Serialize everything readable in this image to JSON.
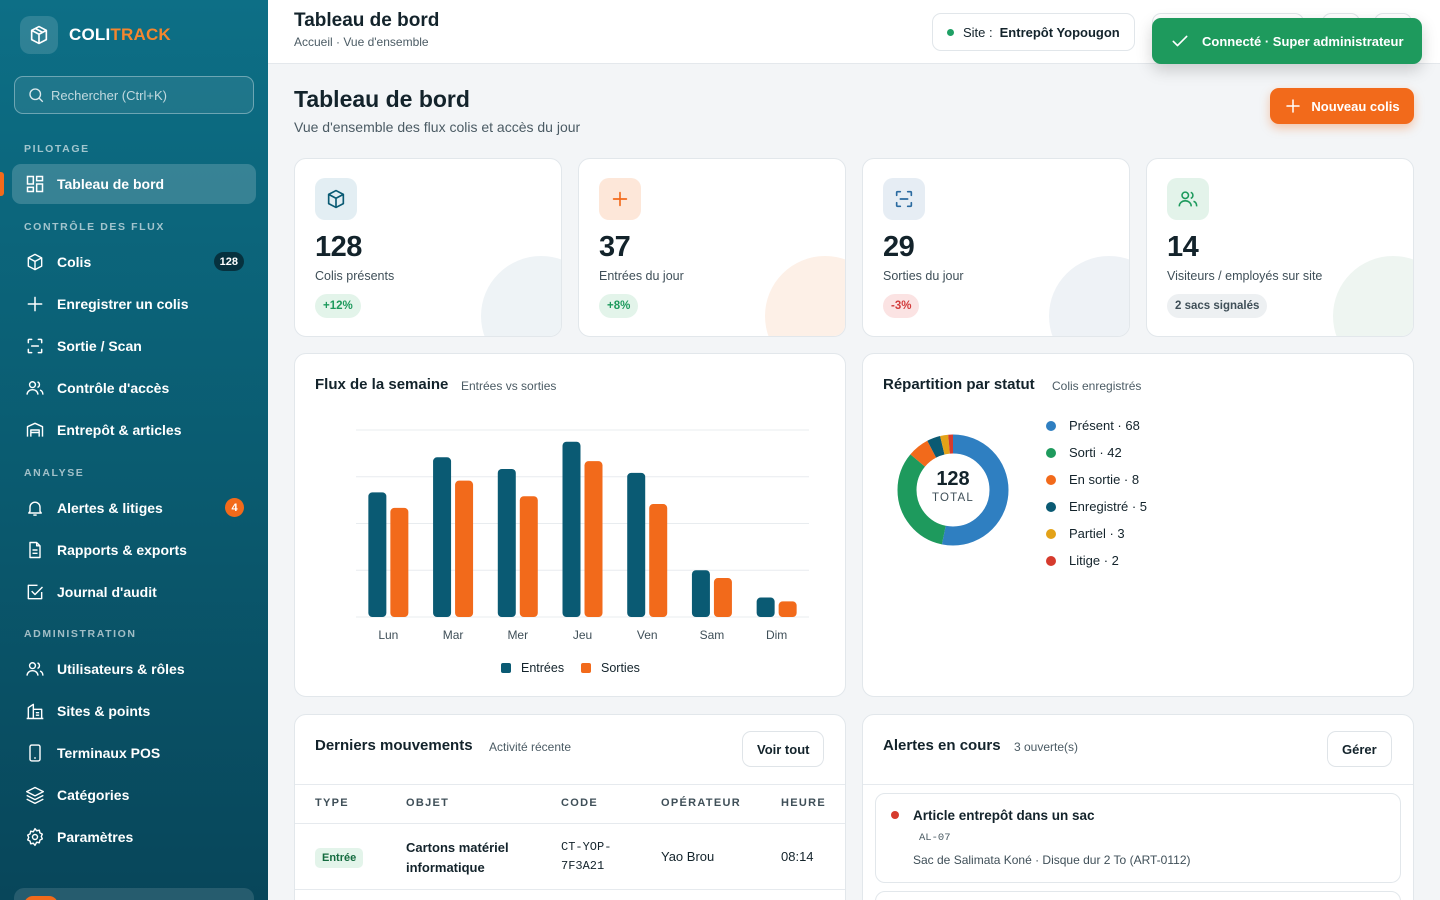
{
  "brand": {
    "name_part1": "COLI",
    "name_part2": "TRACK",
    "accent": "#f26a1b"
  },
  "search": {
    "placeholder": "Rechercher (Ctrl+K)"
  },
  "sidebar": {
    "sections": [
      "PILOTAGE",
      "CONTRÔLE DES FLUX",
      "ANALYSE",
      "ADMINISTRATION"
    ],
    "items": [
      {
        "label": "Tableau de bord",
        "icon": "dashboard-icon",
        "active": true
      },
      {
        "label": "Colis",
        "icon": "package-icon",
        "badge": "128"
      },
      {
        "label": "Enregistrer un colis",
        "icon": "plus-icon"
      },
      {
        "label": "Sortie / Scan",
        "icon": "scan-icon"
      },
      {
        "label": "Contrôle d'accès",
        "icon": "users-icon"
      },
      {
        "label": "Entrepôt & articles",
        "icon": "warehouse-icon"
      },
      {
        "label": "Alertes & litiges",
        "icon": "bell-icon",
        "badge": "4"
      },
      {
        "label": "Rapports & exports",
        "icon": "document-icon"
      },
      {
        "label": "Journal d'audit",
        "icon": "checkbox-icon"
      },
      {
        "label": "Utilisateurs & rôles",
        "icon": "users-icon"
      },
      {
        "label": "Sites & points",
        "icon": "building-icon"
      },
      {
        "label": "Terminaux POS",
        "icon": "device-icon"
      },
      {
        "label": "Catégories",
        "icon": "layers-icon"
      },
      {
        "label": "Paramètres",
        "icon": "gear-icon"
      }
    ]
  },
  "topbar": {
    "title": "Tableau de bord",
    "breadcrumb": "Accueil · Vue d'ensemble",
    "site_label": "Site :",
    "site_value": "Entrepôt Yopougon"
  },
  "toast": {
    "text": "Connecté · Super administrateur"
  },
  "page": {
    "title": "Tableau de bord",
    "subtitle": "Vue d'ensemble des flux colis et accès du jour",
    "new_button": "Nouveau colis"
  },
  "kpis": [
    {
      "value": "128",
      "label": "Colis présents",
      "badge": "+12%",
      "icon": "package-icon"
    },
    {
      "value": "37",
      "label": "Entrées du jour",
      "badge": "+8%",
      "icon": "plus-icon"
    },
    {
      "value": "29",
      "label": "Sorties du jour",
      "badge": "-3%",
      "icon": "scan-icon"
    },
    {
      "value": "14",
      "label": "Visiteurs / employés sur site",
      "badge": "2 sacs signalés",
      "icon": "users-icon"
    }
  ],
  "flux_chart": {
    "title": "Flux de la semaine",
    "subtitle": "Entrées vs sorties"
  },
  "status_chart": {
    "title": "Répartition par statut",
    "subtitle": "Colis enregistrés",
    "total_value": "128",
    "total_label": "TOTAL"
  },
  "chart_data": [
    {
      "type": "bar",
      "categories": [
        "Lun",
        "Mar",
        "Mer",
        "Jeu",
        "Ven",
        "Sam",
        "Dim"
      ],
      "series": [
        {
          "name": "Entrées",
          "color": "#0a5a73",
          "values": [
            32,
            41,
            38,
            45,
            37,
            12,
            5
          ]
        },
        {
          "name": "Sorties",
          "color": "#f26a1b",
          "values": [
            28,
            35,
            31,
            40,
            29,
            10,
            4
          ]
        }
      ],
      "ylim": [
        0,
        48
      ],
      "grid": true,
      "legend": "bottom"
    },
    {
      "type": "pie",
      "categories": [
        "Présent",
        "Sorti",
        "En sortie",
        "Enregistré",
        "Partiel",
        "Litige"
      ],
      "values": [
        68,
        42,
        8,
        5,
        3,
        2
      ],
      "colors": [
        "#2f7fc1",
        "#1e9a5d",
        "#f26a1b",
        "#0a5a73",
        "#e3a218",
        "#d63b2d"
      ],
      "legend": "right"
    }
  ],
  "movements": {
    "title": "Derniers mouvements",
    "subtitle": "Activité récente",
    "button": "Voir tout",
    "headers": [
      "TYPE",
      "OBJET",
      "CODE",
      "OPÉRATEUR",
      "HEURE"
    ],
    "rows": [
      {
        "type": "Entrée",
        "object_line1": "Cartons matériel",
        "object_line2": "informatique",
        "code_line1": "CT-YOP-",
        "code_line2": "7F3A21",
        "operator": "Yao Brou",
        "time": "08:14"
      }
    ]
  },
  "alerts": {
    "title": "Alertes en cours",
    "subtitle": "3 ouverte(s)",
    "button": "Gérer",
    "items": [
      {
        "title": "Article entrepôt dans un sac",
        "code": "AL-07",
        "desc": "Sac de Salimata Koné · Disque dur 2 To (ART-0112)"
      }
    ]
  }
}
